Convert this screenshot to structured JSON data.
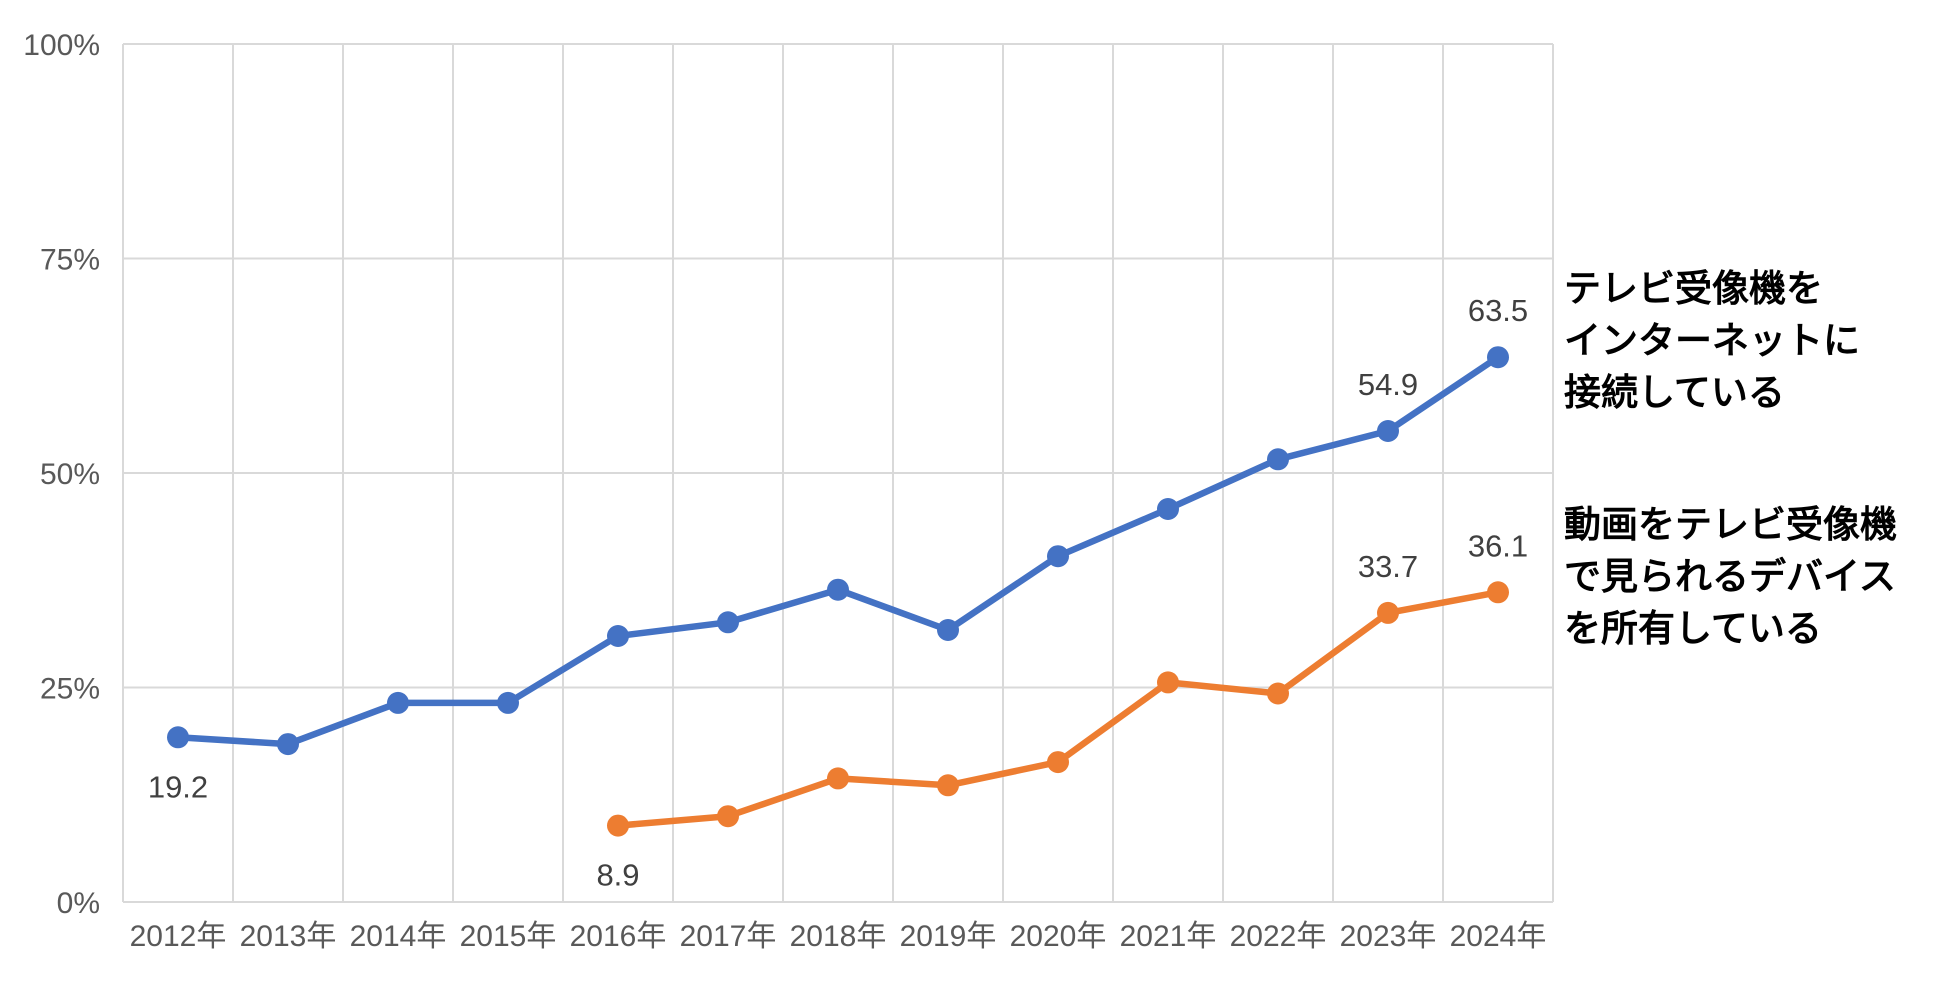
{
  "chart_data": {
    "type": "line",
    "categories": [
      "2012年",
      "2013年",
      "2014年",
      "2015年",
      "2016年",
      "2017年",
      "2018年",
      "2019年",
      "2020年",
      "2021年",
      "2022年",
      "2023年",
      "2024年"
    ],
    "series": [
      {
        "id": "tv-connected-to-internet",
        "name": "テレビ受像機をインターネットに接続している",
        "color": "#4472C4",
        "values": [
          19.2,
          18.4,
          23.2,
          23.2,
          31.0,
          32.6,
          36.4,
          31.7,
          40.3,
          45.8,
          51.6,
          54.9,
          63.5
        ]
      },
      {
        "id": "video-capable-device-owned",
        "name": "動画をテレビ受像機で見られるデバイスを所有している",
        "color": "#ED7D31",
        "values": [
          null,
          null,
          null,
          null,
          8.9,
          10.0,
          14.4,
          13.6,
          16.3,
          25.6,
          24.3,
          33.7,
          36.1
        ]
      }
    ],
    "point_labels": [
      {
        "series": 0,
        "category_index": 0,
        "text": "19.2",
        "position": "below"
      },
      {
        "series": 0,
        "category_index": 11,
        "text": "54.9",
        "position": "above"
      },
      {
        "series": 0,
        "category_index": 12,
        "text": "63.5",
        "position": "above"
      },
      {
        "series": 1,
        "category_index": 4,
        "text": "8.9",
        "position": "below"
      },
      {
        "series": 1,
        "category_index": 11,
        "text": "33.7",
        "position": "above"
      },
      {
        "series": 1,
        "category_index": 12,
        "text": "36.1",
        "position": "above"
      }
    ],
    "title": "",
    "xlabel": "",
    "ylabel": "",
    "y_axis": {
      "min": 0,
      "max": 100,
      "tick_values": [
        0,
        25,
        50,
        75,
        100
      ],
      "tick_labels": [
        "0%",
        "25%",
        "50%",
        "75%",
        "100%"
      ]
    },
    "grid": true,
    "legend_position": "right-annotations"
  },
  "annotations": [
    {
      "id": "tv-connected-to-internet",
      "lines": [
        "テレビ受像機を",
        "インターネットに",
        "接続している"
      ]
    },
    {
      "id": "video-capable-device-owned",
      "lines": [
        "動画をテレビ受像機",
        "で見られるデバイス",
        "を所有している"
      ]
    }
  ],
  "styles": {
    "background": "#ffffff",
    "grid_color": "#D9D9D9",
    "axis_label_color": "#595959",
    "point_label_color": "#404040",
    "annotation_text_color": "#000000",
    "series_blue": "#4472C4",
    "series_orange": "#ED7D31"
  }
}
